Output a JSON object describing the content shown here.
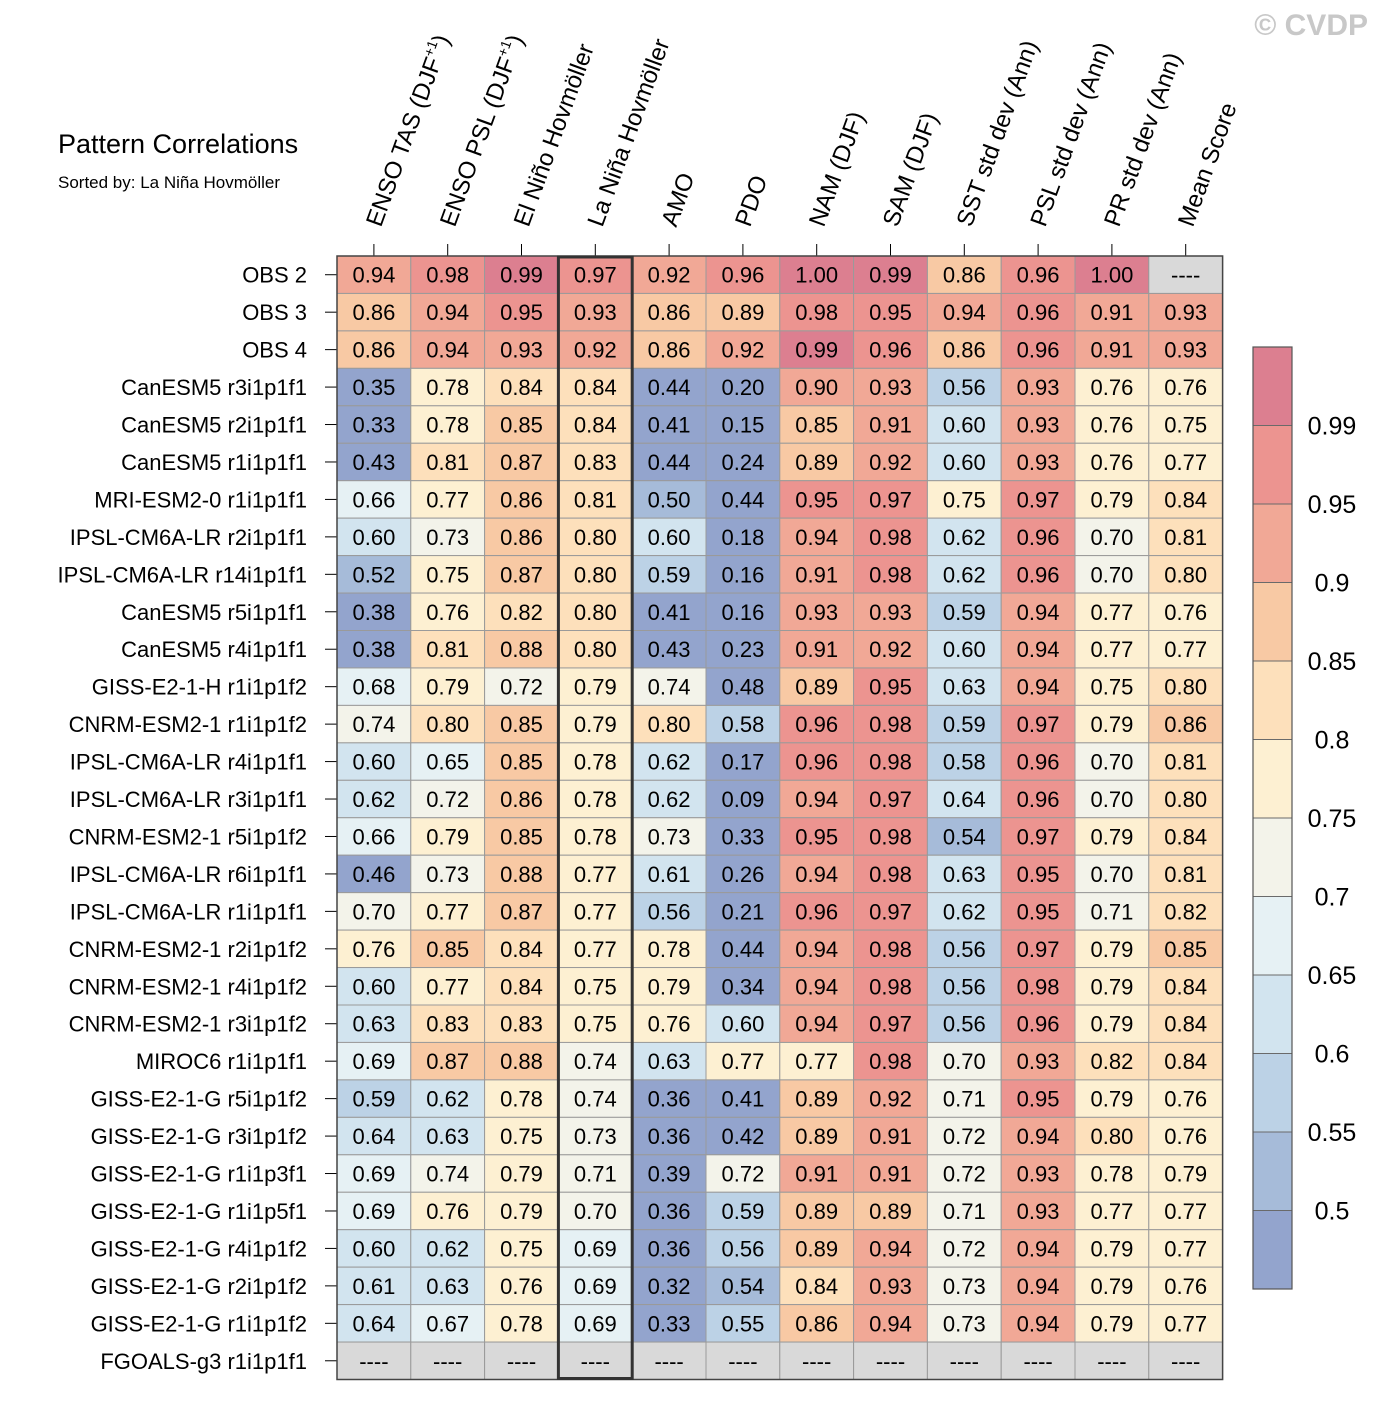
{
  "title": "Pattern Correlations",
  "subtitle": "Sorted by: La Niña Hovmöller",
  "copyright": "© CVDP",
  "chart_data": {
    "type": "heatmap",
    "columns": [
      {
        "label": "ENSO TAS (DJF",
        "sup": "+1",
        "tail": ")"
      },
      {
        "label": "ENSO PSL (DJF",
        "sup": "+1",
        "tail": ")"
      },
      {
        "label": "El Niño Hovmöller"
      },
      {
        "label": "La Niña Hovmöller"
      },
      {
        "label": "AMO"
      },
      {
        "label": "PDO"
      },
      {
        "label": "NAM (DJF)"
      },
      {
        "label": "SAM (DJF)"
      },
      {
        "label": "SST std dev (Ann)"
      },
      {
        "label": "PSL std dev (Ann)"
      },
      {
        "label": "PR std dev (Ann)"
      },
      {
        "label": "Mean Score"
      }
    ],
    "highlight_column": 3,
    "rows": [
      {
        "label": "OBS 2",
        "values": [
          0.94,
          0.98,
          0.99,
          0.97,
          0.92,
          0.96,
          1.0,
          0.99,
          0.86,
          0.96,
          1.0,
          null
        ]
      },
      {
        "label": "OBS 3",
        "values": [
          0.86,
          0.94,
          0.95,
          0.93,
          0.86,
          0.89,
          0.98,
          0.95,
          0.94,
          0.96,
          0.91,
          0.93
        ]
      },
      {
        "label": "OBS 4",
        "values": [
          0.86,
          0.94,
          0.93,
          0.92,
          0.86,
          0.92,
          0.99,
          0.96,
          0.86,
          0.96,
          0.91,
          0.93
        ]
      },
      {
        "label": "CanESM5 r3i1p1f1",
        "values": [
          0.35,
          0.78,
          0.84,
          0.84,
          0.44,
          0.2,
          0.9,
          0.93,
          0.56,
          0.93,
          0.76,
          0.76
        ]
      },
      {
        "label": "CanESM5 r2i1p1f1",
        "values": [
          0.33,
          0.78,
          0.85,
          0.84,
          0.41,
          0.15,
          0.85,
          0.91,
          0.6,
          0.93,
          0.76,
          0.75
        ]
      },
      {
        "label": "CanESM5 r1i1p1f1",
        "values": [
          0.43,
          0.81,
          0.87,
          0.83,
          0.44,
          0.24,
          0.89,
          0.92,
          0.6,
          0.93,
          0.76,
          0.77
        ]
      },
      {
        "label": "MRI-ESM2-0 r1i1p1f1",
        "values": [
          0.66,
          0.77,
          0.86,
          0.81,
          0.5,
          0.44,
          0.95,
          0.97,
          0.75,
          0.97,
          0.79,
          0.84
        ]
      },
      {
        "label": "IPSL-CM6A-LR r2i1p1f1",
        "values": [
          0.6,
          0.73,
          0.86,
          0.8,
          0.6,
          0.18,
          0.94,
          0.98,
          0.62,
          0.96,
          0.7,
          0.81
        ]
      },
      {
        "label": "IPSL-CM6A-LR r14i1p1f1",
        "values": [
          0.52,
          0.75,
          0.87,
          0.8,
          0.59,
          0.16,
          0.91,
          0.98,
          0.62,
          0.96,
          0.7,
          0.8
        ]
      },
      {
        "label": "CanESM5 r5i1p1f1",
        "values": [
          0.38,
          0.76,
          0.82,
          0.8,
          0.41,
          0.16,
          0.93,
          0.93,
          0.59,
          0.94,
          0.77,
          0.76
        ]
      },
      {
        "label": "CanESM5 r4i1p1f1",
        "values": [
          0.38,
          0.81,
          0.88,
          0.8,
          0.43,
          0.23,
          0.91,
          0.92,
          0.6,
          0.94,
          0.77,
          0.77
        ]
      },
      {
        "label": "GISS-E2-1-H r1i1p1f2",
        "values": [
          0.68,
          0.79,
          0.72,
          0.79,
          0.74,
          0.48,
          0.89,
          0.95,
          0.63,
          0.94,
          0.75,
          0.8
        ]
      },
      {
        "label": "CNRM-ESM2-1 r1i1p1f2",
        "values": [
          0.74,
          0.8,
          0.85,
          0.79,
          0.8,
          0.58,
          0.96,
          0.98,
          0.59,
          0.97,
          0.79,
          0.86
        ]
      },
      {
        "label": "IPSL-CM6A-LR r4i1p1f1",
        "values": [
          0.6,
          0.65,
          0.85,
          0.78,
          0.62,
          0.17,
          0.96,
          0.98,
          0.58,
          0.96,
          0.7,
          0.81
        ]
      },
      {
        "label": "IPSL-CM6A-LR r3i1p1f1",
        "values": [
          0.62,
          0.72,
          0.86,
          0.78,
          0.62,
          0.09,
          0.94,
          0.97,
          0.64,
          0.96,
          0.7,
          0.8
        ]
      },
      {
        "label": "CNRM-ESM2-1 r5i1p1f2",
        "values": [
          0.66,
          0.79,
          0.85,
          0.78,
          0.73,
          0.33,
          0.95,
          0.98,
          0.54,
          0.97,
          0.79,
          0.84
        ]
      },
      {
        "label": "IPSL-CM6A-LR r6i1p1f1",
        "values": [
          0.46,
          0.73,
          0.88,
          0.77,
          0.61,
          0.26,
          0.94,
          0.98,
          0.63,
          0.95,
          0.7,
          0.81
        ]
      },
      {
        "label": "IPSL-CM6A-LR r1i1p1f1",
        "values": [
          0.7,
          0.77,
          0.87,
          0.77,
          0.56,
          0.21,
          0.96,
          0.97,
          0.62,
          0.95,
          0.71,
          0.82
        ]
      },
      {
        "label": "CNRM-ESM2-1 r2i1p1f2",
        "values": [
          0.76,
          0.85,
          0.84,
          0.77,
          0.78,
          0.44,
          0.94,
          0.98,
          0.56,
          0.97,
          0.79,
          0.85
        ]
      },
      {
        "label": "CNRM-ESM2-1 r4i1p1f2",
        "values": [
          0.6,
          0.77,
          0.84,
          0.75,
          0.79,
          0.34,
          0.94,
          0.98,
          0.56,
          0.98,
          0.79,
          0.84
        ]
      },
      {
        "label": "CNRM-ESM2-1 r3i1p1f2",
        "values": [
          0.63,
          0.83,
          0.83,
          0.75,
          0.76,
          0.6,
          0.94,
          0.97,
          0.56,
          0.96,
          0.79,
          0.84
        ]
      },
      {
        "label": "MIROC6 r1i1p1f1",
        "values": [
          0.69,
          0.87,
          0.88,
          0.74,
          0.63,
          0.77,
          0.77,
          0.98,
          0.7,
          0.93,
          0.82,
          0.84
        ]
      },
      {
        "label": "GISS-E2-1-G r5i1p1f2",
        "values": [
          0.59,
          0.62,
          0.78,
          0.74,
          0.36,
          0.41,
          0.89,
          0.92,
          0.71,
          0.95,
          0.79,
          0.76
        ]
      },
      {
        "label": "GISS-E2-1-G r3i1p1f2",
        "values": [
          0.64,
          0.63,
          0.75,
          0.73,
          0.36,
          0.42,
          0.89,
          0.91,
          0.72,
          0.94,
          0.8,
          0.76
        ]
      },
      {
        "label": "GISS-E2-1-G r1i1p3f1",
        "values": [
          0.69,
          0.74,
          0.79,
          0.71,
          0.39,
          0.72,
          0.91,
          0.91,
          0.72,
          0.93,
          0.78,
          0.79
        ]
      },
      {
        "label": "GISS-E2-1-G r1i1p5f1",
        "values": [
          0.69,
          0.76,
          0.79,
          0.7,
          0.36,
          0.59,
          0.89,
          0.89,
          0.71,
          0.93,
          0.77,
          0.77
        ]
      },
      {
        "label": "GISS-E2-1-G r4i1p1f2",
        "values": [
          0.6,
          0.62,
          0.75,
          0.69,
          0.36,
          0.56,
          0.89,
          0.94,
          0.72,
          0.94,
          0.79,
          0.77
        ]
      },
      {
        "label": "GISS-E2-1-G r2i1p1f2",
        "values": [
          0.61,
          0.63,
          0.76,
          0.69,
          0.32,
          0.54,
          0.84,
          0.93,
          0.73,
          0.94,
          0.79,
          0.76
        ]
      },
      {
        "label": "GISS-E2-1-G r1i1p1f2",
        "values": [
          0.64,
          0.67,
          0.78,
          0.69,
          0.33,
          0.55,
          0.86,
          0.94,
          0.73,
          0.94,
          0.79,
          0.77
        ]
      },
      {
        "label": "FGOALS-g3 r1i1p1f1",
        "values": [
          null,
          null,
          null,
          null,
          null,
          null,
          null,
          null,
          null,
          null,
          null,
          null
        ]
      }
    ],
    "missing_text": "----",
    "missing_color": "#d9d9d9",
    "colorbar": {
      "levels": [
        0.5,
        0.55,
        0.6,
        0.65,
        0.7,
        0.75,
        0.8,
        0.85,
        0.9,
        0.95,
        0.99
      ],
      "labels": [
        "0.5",
        "0.55",
        "0.6",
        "0.65",
        "0.7",
        "0.75",
        "0.8",
        "0.85",
        "0.9",
        "0.95",
        "0.99"
      ],
      "colors": [
        "#93a4cd",
        "#a6bbd9",
        "#bcd2e6",
        "#d2e4ef",
        "#e6f1f4",
        "#f3f3ea",
        "#fdf0d2",
        "#fde0bb",
        "#f8c9a4",
        "#f1a896",
        "#ec9490",
        "#dc7f90"
      ]
    }
  }
}
